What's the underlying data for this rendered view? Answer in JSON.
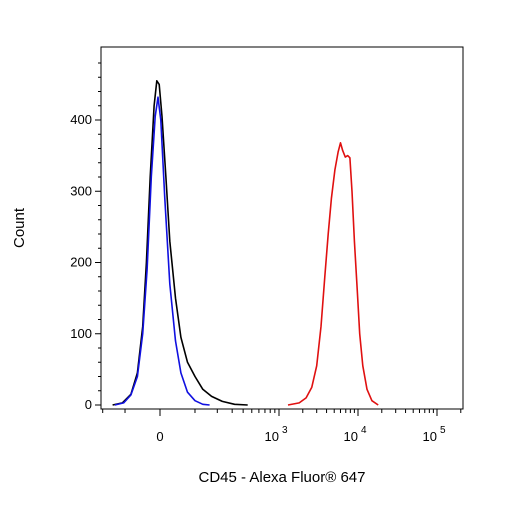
{
  "chart_data": {
    "type": "line",
    "title": "",
    "xlabel": "CD45 - Alexa Fluor® 647",
    "ylabel": "Count",
    "ylim": [
      0,
      500
    ],
    "y_ticks": [
      0,
      100,
      200,
      300,
      400
    ],
    "x_scale": "biexponential",
    "x_tick_labels": [
      "0",
      "10",
      "10",
      "10"
    ],
    "x_tick_exponents": [
      "",
      "3",
      "4",
      "5"
    ],
    "grid": false,
    "legend": "none",
    "series": [
      {
        "color": "#000000",
        "points": [
          [
            -150,
            0
          ],
          [
            -110,
            3
          ],
          [
            -80,
            15
          ],
          [
            -60,
            45
          ],
          [
            -45,
            110
          ],
          [
            -35,
            200
          ],
          [
            -25,
            320
          ],
          [
            -15,
            420
          ],
          [
            -8,
            455
          ],
          [
            -2,
            450
          ],
          [
            5,
            405
          ],
          [
            15,
            320
          ],
          [
            25,
            230
          ],
          [
            40,
            150
          ],
          [
            55,
            95
          ],
          [
            75,
            60
          ],
          [
            100,
            40
          ],
          [
            130,
            22
          ],
          [
            170,
            12
          ],
          [
            230,
            5
          ],
          [
            320,
            1
          ],
          [
            450,
            0
          ]
        ]
      },
      {
        "color": "#1010e0",
        "points": [
          [
            -140,
            0
          ],
          [
            -105,
            3
          ],
          [
            -80,
            14
          ],
          [
            -60,
            40
          ],
          [
            -45,
            100
          ],
          [
            -33,
            190
          ],
          [
            -22,
            320
          ],
          [
            -12,
            405
          ],
          [
            -5,
            432
          ],
          [
            2,
            400
          ],
          [
            12,
            290
          ],
          [
            25,
            170
          ],
          [
            40,
            90
          ],
          [
            55,
            45
          ],
          [
            75,
            18
          ],
          [
            100,
            6
          ],
          [
            130,
            1
          ],
          [
            160,
            0
          ]
        ]
      },
      {
        "color": "#e01010",
        "points": [
          [
            1300,
            0
          ],
          [
            1800,
            3
          ],
          [
            2200,
            10
          ],
          [
            2600,
            25
          ],
          [
            3000,
            55
          ],
          [
            3400,
            110
          ],
          [
            3800,
            180
          ],
          [
            4200,
            240
          ],
          [
            4600,
            290
          ],
          [
            5100,
            330
          ],
          [
            5600,
            355
          ],
          [
            6000,
            368
          ],
          [
            6400,
            357
          ],
          [
            6900,
            348
          ],
          [
            7400,
            350
          ],
          [
            7900,
            347
          ],
          [
            8400,
            300
          ],
          [
            9000,
            230
          ],
          [
            9800,
            160
          ],
          [
            10500,
            100
          ],
          [
            11500,
            55
          ],
          [
            13000,
            22
          ],
          [
            15000,
            6
          ],
          [
            18000,
            0
          ]
        ]
      }
    ]
  }
}
